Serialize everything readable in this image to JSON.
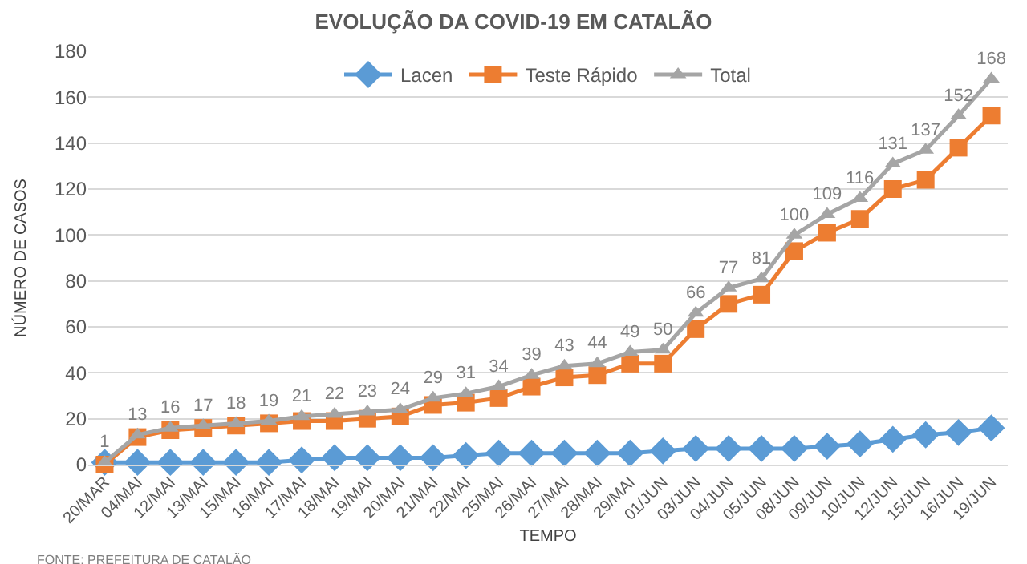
{
  "chart_data": {
    "type": "line",
    "title": "EVOLUÇÃO DA COVID-19 EM CATALÃO",
    "xlabel": "TEMPO",
    "ylabel": "NÚMERO DE CASOS",
    "categories": [
      "20/MAR",
      "04/MAI",
      "12/MAI",
      "13/MAI",
      "15/MAI",
      "16/MAI",
      "17/MAI",
      "18/MAI",
      "19/MAI",
      "20/MAI",
      "21/MAI",
      "22/MAI",
      "25/MAI",
      "26/MAI",
      "27/MAI",
      "28/MAI",
      "29/MAI",
      "01/JUN",
      "03/JUN",
      "04/JUN",
      "05/JUN",
      "08/JUN",
      "09/JUN",
      "10/JUN",
      "12/JUN",
      "15/JUN",
      "16/JUN",
      "19/JUN"
    ],
    "series": [
      {
        "name": "Lacen",
        "color": "#5b9bd5",
        "marker": "diamond",
        "values": [
          1,
          1,
          1,
          1,
          1,
          1,
          2,
          3,
          3,
          3,
          3,
          4,
          5,
          5,
          5,
          5,
          5,
          6,
          7,
          7,
          7,
          7,
          8,
          9,
          11,
          13,
          14,
          16
        ]
      },
      {
        "name": "Teste Rápido",
        "color": "#ed7d31",
        "marker": "square",
        "values": [
          0,
          12,
          15,
          16,
          17,
          18,
          19,
          19,
          20,
          21,
          26,
          27,
          29,
          34,
          38,
          39,
          44,
          44,
          59,
          70,
          74,
          93,
          101,
          107,
          120,
          124,
          138,
          152
        ]
      },
      {
        "name": "Total",
        "color": "#a5a5a5",
        "marker": "triangle",
        "values": [
          1,
          13,
          16,
          17,
          18,
          19,
          21,
          22,
          23,
          24,
          29,
          31,
          34,
          39,
          43,
          44,
          49,
          50,
          66,
          77,
          81,
          100,
          109,
          116,
          131,
          137,
          152,
          168
        ],
        "value_labels": [
          "1",
          "13",
          "16",
          "17",
          "18",
          "19",
          "21",
          "22",
          "23",
          "24",
          "29",
          "31",
          "34",
          "39",
          "43",
          "44",
          "49",
          "50",
          "66",
          "77",
          "81",
          "100",
          "109",
          "116",
          "131",
          "137",
          "152",
          "168"
        ]
      }
    ],
    "ylim": [
      0,
      180
    ],
    "yticks": [
      0,
      20,
      40,
      60,
      80,
      100,
      120,
      140,
      160,
      180
    ],
    "grid": "y",
    "legend": "top",
    "line_style": "solid",
    "annotations": [
      "FONTE: PREFEITURA DE CATALÃO"
    ]
  }
}
